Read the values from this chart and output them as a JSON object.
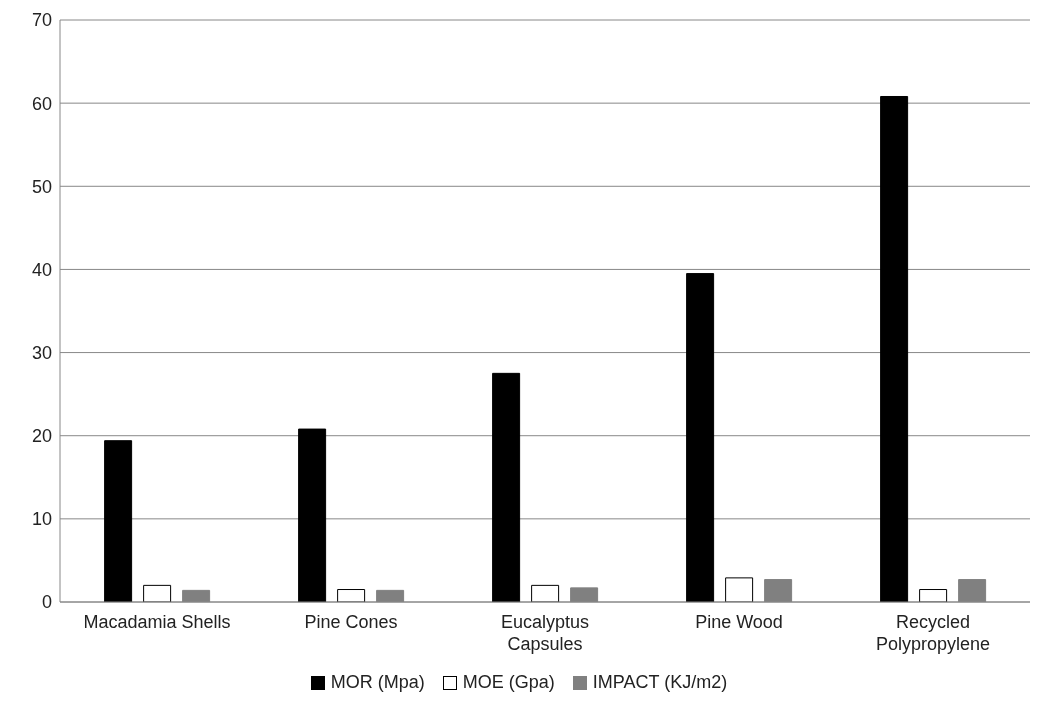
{
  "chart_data": {
    "type": "bar",
    "categories": [
      "Macadamia Shells",
      "Pine Cones",
      "Eucalyptus Capsules",
      "Pine Wood",
      "Recycled Polypropylene"
    ],
    "series": [
      {
        "name": "MOR (Mpa)",
        "color": "#000000",
        "values": [
          19.4,
          20.8,
          27.5,
          39.5,
          60.8
        ]
      },
      {
        "name": "MOE (Gpa)",
        "color": "#ffffff",
        "values": [
          2.0,
          1.5,
          2.0,
          2.9,
          1.5
        ]
      },
      {
        "name": "IMPACT (KJ/m2)",
        "color": "#808080",
        "values": [
          1.4,
          1.4,
          1.7,
          2.7,
          2.7
        ]
      }
    ],
    "ylim": [
      0,
      70
    ],
    "yticks": [
      0,
      10,
      20,
      30,
      40,
      50,
      60,
      70
    ],
    "grid": "y",
    "legend": "bottom"
  }
}
